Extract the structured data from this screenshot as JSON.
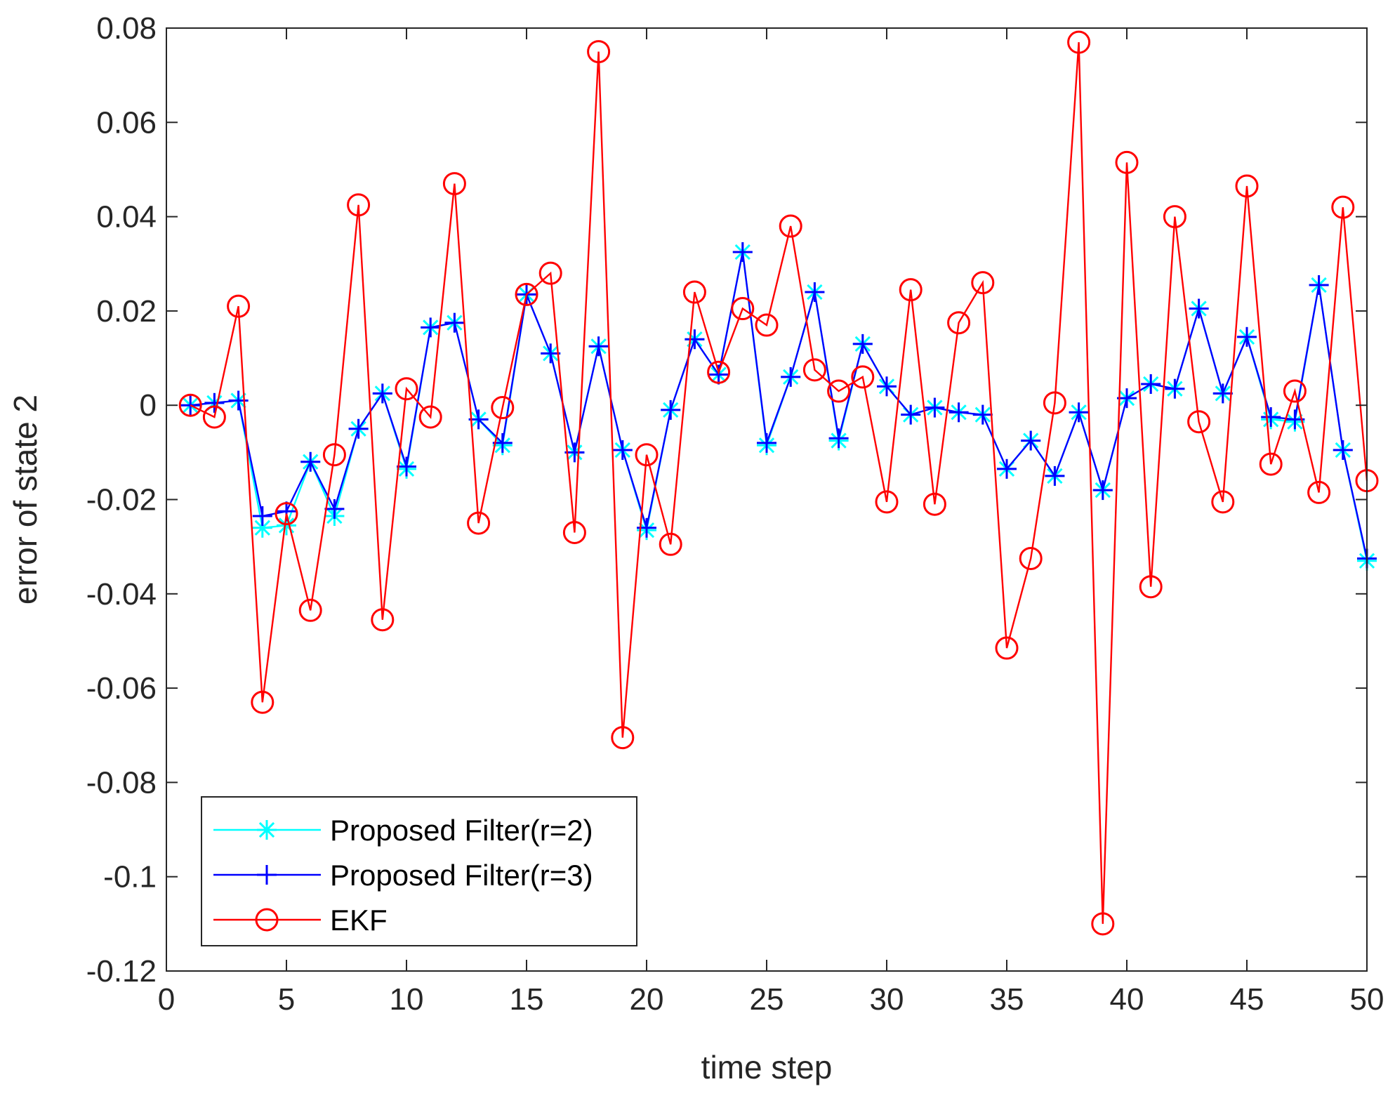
{
  "chart_data": {
    "type": "line",
    "title": "",
    "xlabel": "time step",
    "ylabel": "error of state 2",
    "xlim": [
      0,
      50
    ],
    "ylim": [
      -0.12,
      0.08
    ],
    "xticks": [
      0,
      5,
      10,
      15,
      20,
      25,
      30,
      35,
      40,
      45,
      50
    ],
    "xtick_labels": [
      "0",
      "5",
      "10",
      "15",
      "20",
      "25",
      "30",
      "35",
      "40",
      "45",
      "50"
    ],
    "yticks": [
      -0.12,
      -0.1,
      -0.08,
      -0.06,
      -0.04,
      -0.02,
      0,
      0.02,
      0.04,
      0.06,
      0.08
    ],
    "ytick_labels": [
      "-0.12",
      "-0.1",
      "-0.08",
      "-0.06",
      "-0.04",
      "-0.02",
      "0",
      "0.02",
      "0.04",
      "0.06",
      "0.08"
    ],
    "grid": false,
    "legend_position": "bottom-left",
    "x": [
      1,
      2,
      3,
      4,
      5,
      6,
      7,
      8,
      9,
      10,
      11,
      12,
      13,
      14,
      15,
      16,
      17,
      18,
      19,
      20,
      21,
      22,
      23,
      24,
      25,
      26,
      27,
      28,
      29,
      30,
      31,
      32,
      33,
      34,
      35,
      36,
      37,
      38,
      39,
      40,
      41,
      42,
      43,
      44,
      45,
      46,
      47,
      48,
      49,
      50
    ],
    "series": [
      {
        "name": "Proposed Filter(r=2)",
        "color": "#00ffff",
        "marker": "asterisk",
        "values": [
          0,
          0.0005,
          0.001,
          -0.026,
          -0.0255,
          -0.012,
          -0.0235,
          -0.005,
          0.0025,
          -0.0135,
          0.0165,
          0.0175,
          -0.003,
          -0.0085,
          0.0235,
          0.011,
          -0.01,
          0.0125,
          -0.0095,
          -0.0265,
          -0.001,
          0.014,
          0.0065,
          0.0325,
          -0.0085,
          0.006,
          0.024,
          -0.0075,
          0.013,
          0.004,
          -0.002,
          -0.0005,
          -0.0015,
          -0.002,
          -0.0135,
          -0.0075,
          -0.015,
          -0.0015,
          -0.018,
          0.0015,
          0.0045,
          0.0035,
          0.0205,
          0.0025,
          0.0145,
          -0.003,
          -0.0035,
          0.0255,
          -0.0095,
          -0.033
        ]
      },
      {
        "name": "Proposed Filter(r=3)",
        "color": "#0000ff",
        "marker": "plus",
        "values": [
          0,
          0.0005,
          0.001,
          -0.0235,
          -0.0225,
          -0.012,
          -0.022,
          -0.005,
          0.0025,
          -0.013,
          0.0165,
          0.0175,
          -0.003,
          -0.008,
          0.0235,
          0.011,
          -0.01,
          0.0125,
          -0.0095,
          -0.026,
          -0.001,
          0.014,
          0.0065,
          0.0325,
          -0.008,
          0.006,
          0.024,
          -0.007,
          0.013,
          0.004,
          -0.002,
          -0.0005,
          -0.0015,
          -0.002,
          -0.0135,
          -0.0075,
          -0.015,
          -0.0015,
          -0.018,
          0.0015,
          0.0045,
          0.0035,
          0.0205,
          0.0025,
          0.0145,
          -0.0025,
          -0.003,
          0.0255,
          -0.0095,
          -0.0325
        ]
      },
      {
        "name": "EKF",
        "color": "#ff0000",
        "marker": "circle",
        "values": [
          0,
          -0.0025,
          0.021,
          -0.063,
          -0.023,
          -0.0435,
          -0.0105,
          0.0425,
          -0.0455,
          0.0035,
          -0.0025,
          0.047,
          -0.025,
          -0.0005,
          0.0235,
          0.028,
          -0.027,
          0.075,
          -0.0705,
          -0.0105,
          -0.0295,
          0.024,
          0.007,
          0.0205,
          0.017,
          0.038,
          0.0075,
          0.003,
          0.006,
          -0.0205,
          0.0245,
          -0.021,
          0.0175,
          0.026,
          -0.0515,
          -0.0325,
          0.0005,
          0.077,
          -0.11,
          0.0515,
          -0.0385,
          0.04,
          -0.0035,
          -0.0205,
          0.0465,
          -0.0125,
          0.003,
          -0.0185,
          0.042,
          -0.016
        ]
      }
    ]
  }
}
